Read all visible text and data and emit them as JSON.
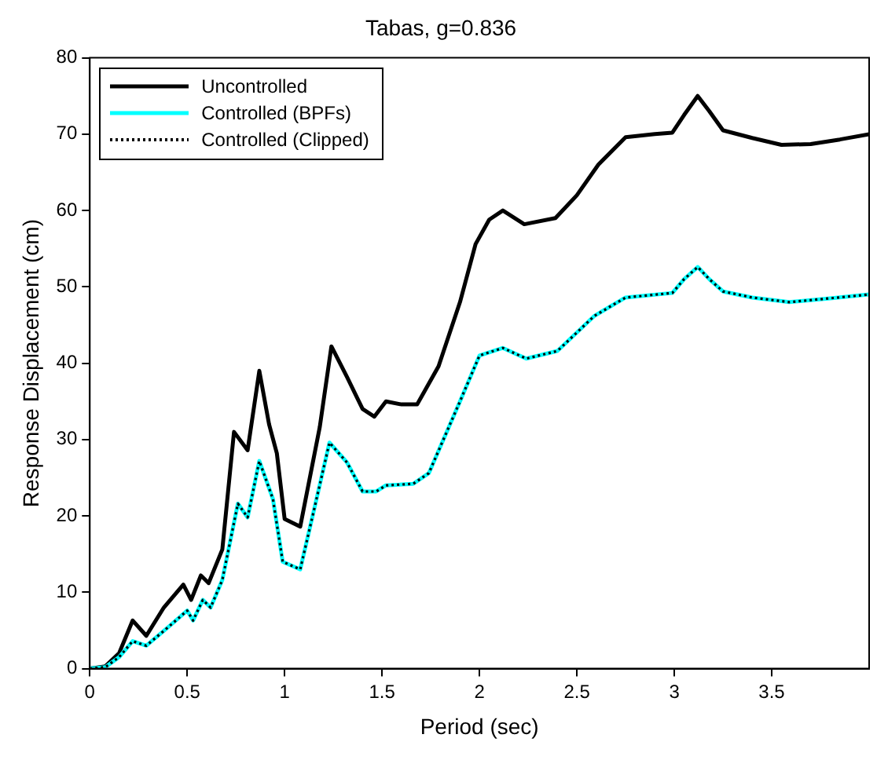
{
  "chart_data": {
    "type": "line",
    "title": "Tabas, g=0.836",
    "xlabel": "Period (sec)",
    "ylabel": "Response Displacement (cm)",
    "xlim": [
      0,
      4
    ],
    "xticks": [
      0,
      0.5,
      1,
      1.5,
      2,
      2.5,
      3,
      3.5
    ],
    "ylim": [
      0,
      80
    ],
    "yticks": [
      0,
      10,
      20,
      30,
      40,
      50,
      60,
      70,
      80
    ],
    "grid": false,
    "legend": "top left",
    "marker": "none",
    "series": [
      {
        "name": "Uncontrolled",
        "color": "#000000",
        "line_style": "solid",
        "x": [
          0,
          0.08,
          0.15,
          0.22,
          0.29,
          0.38,
          0.48,
          0.52,
          0.57,
          0.61,
          0.68,
          0.74,
          0.81,
          0.87,
          0.92,
          0.96,
          1.0,
          1.08,
          1.18,
          1.24,
          1.32,
          1.4,
          1.46,
          1.52,
          1.6,
          1.68,
          1.79,
          1.9,
          1.98,
          2.05,
          2.12,
          2.23,
          2.39,
          2.5,
          2.61,
          2.75,
          2.9,
          2.99,
          3.05,
          3.12,
          3.18,
          3.25,
          3.4,
          3.55,
          3.7,
          3.85,
          4.0
        ],
        "values": [
          0,
          0.3,
          2,
          6.3,
          4.3,
          8,
          11,
          9,
          12.2,
          11.2,
          15.6,
          31,
          28.6,
          39,
          32,
          28.2,
          19.6,
          18.6,
          31.6,
          42.2,
          38.2,
          34,
          33,
          35,
          34.6,
          34.6,
          39.6,
          48,
          55.6,
          58.8,
          60,
          58.2,
          59,
          62,
          66,
          69.6,
          70,
          70.2,
          72.5,
          75,
          73,
          70.5,
          69.5,
          68.6,
          68.7,
          69.3,
          70
        ]
      },
      {
        "name": "Controlled (BPFs)",
        "color": "#00ffff",
        "line_style": "solid",
        "x": [
          0,
          0.08,
          0.15,
          0.22,
          0.29,
          0.41,
          0.5,
          0.53,
          0.58,
          0.62,
          0.68,
          0.76,
          0.81,
          0.87,
          0.94,
          0.99,
          1.08,
          1.14,
          1.23,
          1.32,
          1.4,
          1.47,
          1.52,
          1.66,
          1.74,
          1.9,
          2.0,
          2.12,
          2.24,
          2.4,
          2.59,
          2.75,
          2.99,
          3.05,
          3.12,
          3.18,
          3.25,
          3.4,
          3.59,
          3.8,
          4.0
        ],
        "values": [
          0,
          0.2,
          1.5,
          3.6,
          3,
          5.6,
          7.6,
          6.3,
          9,
          8,
          11.6,
          21.6,
          19.8,
          27.2,
          22.2,
          14,
          13,
          19.6,
          29.6,
          27,
          23.2,
          23.2,
          24,
          24.2,
          25.6,
          35,
          41,
          42,
          40.6,
          41.6,
          46.2,
          48.6,
          49.2,
          51,
          52.6,
          51,
          49.4,
          48.6,
          48,
          48.5,
          49
        ]
      },
      {
        "name": "Controlled (Clipped)",
        "color": "#000000",
        "line_style": "dotted",
        "x": [
          0,
          0.08,
          0.15,
          0.22,
          0.29,
          0.41,
          0.5,
          0.53,
          0.58,
          0.62,
          0.68,
          0.76,
          0.81,
          0.87,
          0.94,
          0.99,
          1.08,
          1.14,
          1.23,
          1.32,
          1.4,
          1.47,
          1.52,
          1.66,
          1.74,
          1.9,
          2.0,
          2.12,
          2.24,
          2.4,
          2.59,
          2.75,
          2.99,
          3.05,
          3.12,
          3.18,
          3.25,
          3.4,
          3.59,
          3.8,
          4.0
        ],
        "values": [
          0,
          0.2,
          1.5,
          3.6,
          3,
          5.6,
          7.6,
          6.3,
          9,
          8,
          11.6,
          21.6,
          19.8,
          27.2,
          22.2,
          14,
          13,
          19.6,
          29.6,
          27,
          23.2,
          23.2,
          24,
          24.2,
          25.6,
          35,
          41,
          42,
          40.6,
          41.6,
          46.2,
          48.6,
          49.2,
          51,
          52.6,
          51,
          49.4,
          48.6,
          48,
          48.5,
          49
        ]
      }
    ]
  }
}
